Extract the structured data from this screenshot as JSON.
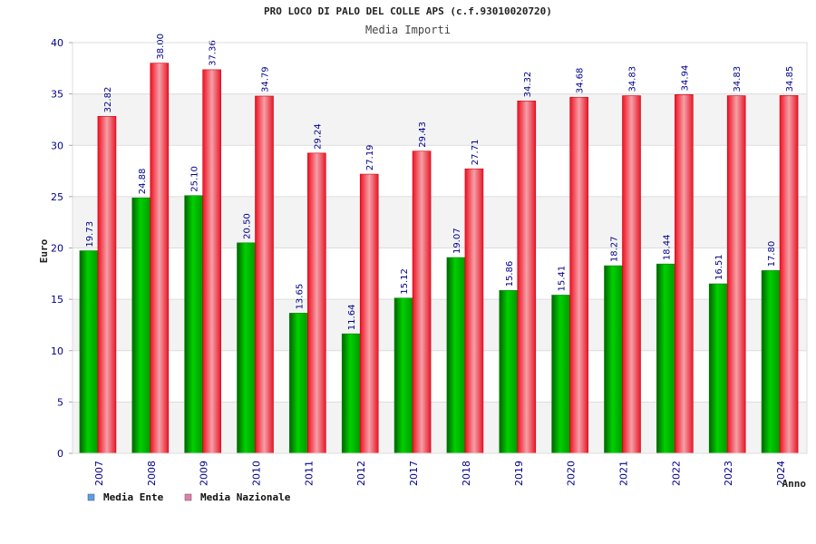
{
  "header": {
    "title": "PRO LOCO DI PALO DEL COLLE APS (c.f.93010020720)",
    "subtitle": "Media Importi"
  },
  "chart_data": {
    "type": "bar",
    "categories": [
      "2007",
      "2008",
      "2009",
      "2010",
      "2011",
      "2012",
      "2017",
      "2018",
      "2019",
      "2020",
      "2021",
      "2022",
      "2023",
      "2024"
    ],
    "series": [
      {
        "name": "Media Ente",
        "color": "#00b000",
        "values": [
          19.73,
          24.88,
          25.1,
          20.5,
          13.65,
          11.64,
          15.12,
          19.07,
          15.86,
          15.41,
          18.27,
          18.44,
          16.51,
          17.8
        ],
        "labels": [
          "19.73",
          "24.88",
          "25.10",
          "20.50",
          "13.65",
          "11.64",
          "15.12",
          "19.07",
          "15.86",
          "15.41",
          "18.27",
          "18.44",
          "16.51",
          "17.80"
        ]
      },
      {
        "name": "Media Nazionale",
        "color": "#e8202a",
        "values": [
          32.82,
          38.0,
          37.36,
          34.79,
          29.24,
          27.19,
          29.43,
          27.71,
          34.32,
          34.68,
          34.83,
          34.94,
          34.83,
          34.85
        ],
        "labels": [
          "32.82",
          "38.00",
          "37.36",
          "34.79",
          "29.24",
          "27.19",
          "29.43",
          "27.71",
          "34.32",
          "34.68",
          "34.83",
          "34.94",
          "34.83",
          "34.85"
        ]
      }
    ],
    "xlabel": "Anno",
    "ylabel": "Euro",
    "ylim": [
      0,
      40
    ],
    "yticks": [
      0,
      5,
      10,
      15,
      20,
      25,
      30,
      35,
      40
    ],
    "grid": true,
    "legend": {
      "placement": "bottom-left",
      "items": [
        {
          "label": "Media Ente",
          "swatch": "#5a9ee8"
        },
        {
          "label": "Media Nazionale",
          "swatch": "#e27fae"
        }
      ]
    }
  }
}
